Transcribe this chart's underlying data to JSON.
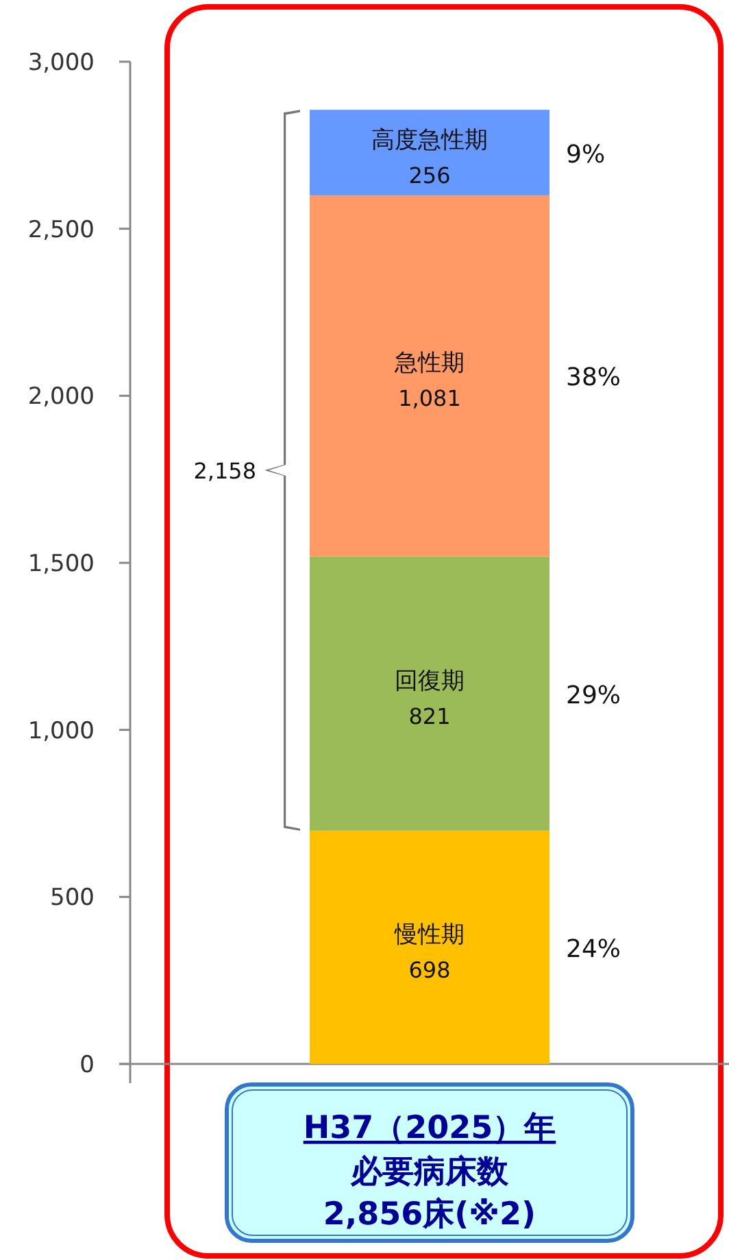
{
  "chart_data": {
    "type": "bar",
    "stacked": true,
    "categories": [
      "H37（2025）年"
    ],
    "xlabel": "必要病床数2,856床(※2)",
    "series": [
      {
        "name": "慢性期",
        "color": "#ffc000",
        "values": [
          698
        ],
        "value_labels": [
          "698"
        ]
      },
      {
        "name": "回復期",
        "color": "#9bbb59",
        "values": [
          821
        ],
        "value_labels": [
          "821"
        ]
      },
      {
        "name": "急性期",
        "color": "#ff9966",
        "values": [
          1081
        ],
        "value_labels": [
          "1,081"
        ]
      },
      {
        "name": "高度急性期",
        "color": "#6699ff",
        "values": [
          256
        ],
        "value_labels": [
          "256"
        ]
      }
    ],
    "ylim": [
      0,
      3000
    ],
    "yticks": [
      0,
      500,
      {
        "value": 1000,
        "label": "1,000"
      },
      {
        "value": 1500,
        "label": "1,500"
      },
      {
        "value": 2000,
        "label": "2,000"
      },
      {
        "value": 2500,
        "label": "2,500"
      },
      {
        "value": 3000,
        "label": "3,000"
      }
    ],
    "annotations": [
      "24%",
      "29%",
      "38%",
      "9%",
      "2,158"
    ]
  }
}
